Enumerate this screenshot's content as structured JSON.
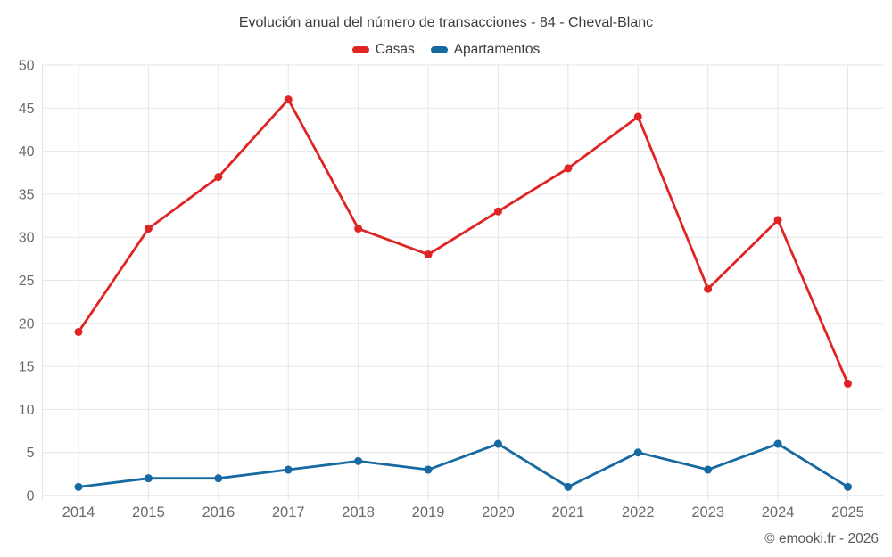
{
  "chart_data": {
    "type": "line",
    "title": "Evolución anual del número de transacciones - 84 - Cheval-Blanc",
    "categories": [
      "2014",
      "2015",
      "2016",
      "2017",
      "2018",
      "2019",
      "2020",
      "2021",
      "2022",
      "2023",
      "2024",
      "2025"
    ],
    "series": [
      {
        "name": "Casas",
        "color": "#e02424",
        "values": [
          19,
          31,
          37,
          46,
          31,
          28,
          33,
          38,
          44,
          24,
          32,
          13
        ]
      },
      {
        "name": "Apartamentos",
        "color": "#1769a1",
        "values": [
          1,
          2,
          2,
          3,
          4,
          3,
          6,
          1,
          5,
          3,
          6,
          1
        ]
      }
    ],
    "xlabel": "",
    "ylabel": "",
    "ylim": [
      0,
      50
    ],
    "y_ticks": [
      0,
      5,
      10,
      15,
      20,
      25,
      30,
      35,
      40,
      45,
      50
    ],
    "grid": true,
    "legend_position": "top",
    "grid_color": "#e6e6e6",
    "axis_line_color": "#d8d8d8",
    "tick_label_color": "#6b6b6b"
  },
  "footer": {
    "copyright": "© emooki.fr - 2026"
  }
}
